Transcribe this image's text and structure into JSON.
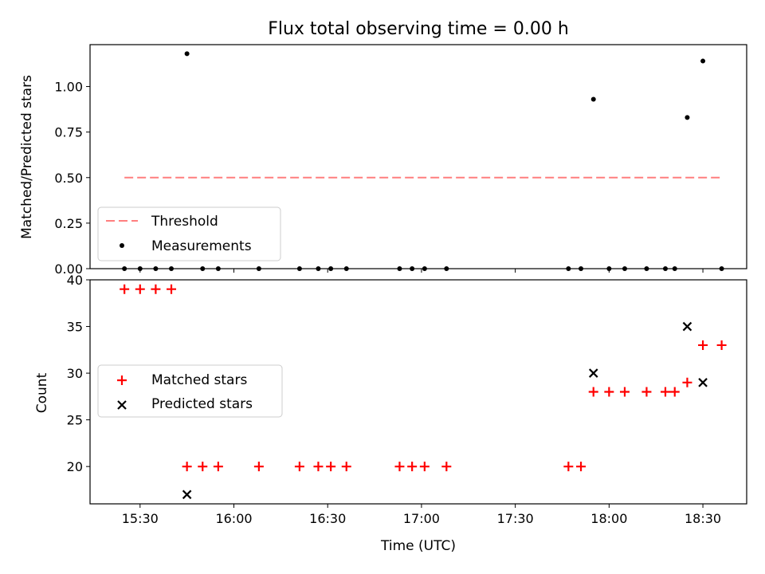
{
  "chart_data": [
    {
      "type": "line",
      "panel": "top",
      "title": "Flux total observing time = 0.00 h",
      "ylabel": "Matched/Predicted stars",
      "ylim": [
        0,
        1.23
      ],
      "yticks": [
        0.0,
        0.25,
        0.5,
        0.75,
        1.0
      ],
      "ytick_labels": [
        "0.00",
        "0.25",
        "0.50",
        "0.75",
        "1.00"
      ],
      "legend": {
        "placement": "lower-left"
      },
      "series": [
        {
          "name": "Threshold",
          "style": "dashed-line",
          "color": "#ff7f7f",
          "x": [
            "15:25",
            "18:36"
          ],
          "y": [
            0.5,
            0.5
          ]
        },
        {
          "name": "Measurements",
          "style": "dot",
          "color": "#000000",
          "x": [
            "15:25",
            "15:30",
            "15:35",
            "15:40",
            "15:45",
            "15:50",
            "15:55",
            "16:08",
            "16:21",
            "16:27",
            "16:31",
            "16:36",
            "16:53",
            "16:57",
            "17:01",
            "17:08",
            "17:47",
            "17:51",
            "17:55",
            "18:00",
            "18:05",
            "18:12",
            "18:18",
            "18:21",
            "18:25",
            "18:30",
            "18:36"
          ],
          "y": [
            0,
            0,
            0,
            0,
            1.18,
            0,
            0,
            0,
            0,
            0,
            0,
            0,
            0,
            0,
            0,
            0,
            0,
            0,
            0.93,
            0,
            0,
            0,
            0,
            0,
            0.83,
            1.14,
            0
          ]
        }
      ]
    },
    {
      "type": "scatter",
      "panel": "bottom",
      "xlabel": "Time (UTC)",
      "ylabel": "Count",
      "ylim": [
        16,
        40
      ],
      "yticks": [
        20,
        25,
        30,
        35,
        40
      ],
      "xticks": [
        "15:30",
        "16:00",
        "16:30",
        "17:00",
        "17:30",
        "18:00",
        "18:30"
      ],
      "legend": {
        "placement": "center-left"
      },
      "series": [
        {
          "name": "Matched stars",
          "marker": "+",
          "color": "#ff0000",
          "x": [
            "15:25",
            "15:30",
            "15:35",
            "15:40",
            "15:45",
            "15:50",
            "15:55",
            "16:08",
            "16:21",
            "16:27",
            "16:31",
            "16:36",
            "16:53",
            "16:57",
            "17:01",
            "17:08",
            "17:47",
            "17:51",
            "17:55",
            "18:00",
            "18:05",
            "18:12",
            "18:18",
            "18:21",
            "18:25",
            "18:30",
            "18:36"
          ],
          "y": [
            39,
            39,
            39,
            39,
            20,
            20,
            20,
            20,
            20,
            20,
            20,
            20,
            20,
            20,
            20,
            20,
            20,
            20,
            28,
            28,
            28,
            28,
            28,
            28,
            29,
            33,
            33
          ]
        },
        {
          "name": "Predicted stars",
          "marker": "x",
          "color": "#000000",
          "x": [
            "15:45",
            "17:55",
            "18:25",
            "18:30"
          ],
          "y": [
            17,
            30,
            35,
            29
          ]
        }
      ]
    }
  ]
}
